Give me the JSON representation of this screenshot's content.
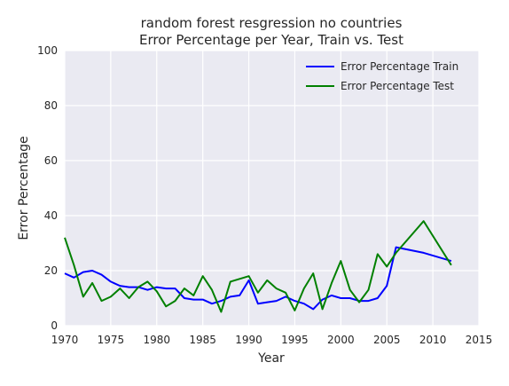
{
  "chart_data": {
    "type": "line",
    "title_lines": [
      "random forest resgression no countries",
      "Error Percentage per Year, Train vs. Test"
    ],
    "xlabel": "Year",
    "ylabel": "Error Percentage",
    "xlim": [
      1970,
      2015
    ],
    "ylim": [
      0,
      100
    ],
    "xticks": [
      1970,
      1975,
      1980,
      1985,
      1990,
      1995,
      2000,
      2005,
      2010,
      2015
    ],
    "yticks": [
      0,
      20,
      40,
      60,
      80,
      100
    ],
    "grid": true,
    "legend_position": "top-right",
    "x": [
      1970,
      1971,
      1972,
      1973,
      1974,
      1975,
      1976,
      1977,
      1978,
      1979,
      1980,
      1981,
      1982,
      1983,
      1984,
      1985,
      1986,
      1987,
      1988,
      1989,
      1990,
      1991,
      1992,
      1993,
      1994,
      1995,
      1996,
      1997,
      1998,
      1999,
      2000,
      2001,
      2002,
      2003,
      2004,
      2005,
      2006,
      2009,
      2012
    ],
    "series": [
      {
        "name": "Error Percentage Train",
        "color": "#0000ff",
        "values": [
          19,
          17.5,
          19.5,
          20,
          18.5,
          16,
          14.5,
          14,
          14,
          13,
          14,
          13.5,
          13.5,
          10,
          9.5,
          9.5,
          8,
          9,
          10.5,
          11,
          16.5,
          8,
          8.5,
          9,
          10.5,
          9,
          8,
          6,
          9.5,
          11,
          10,
          10,
          9,
          9,
          10,
          14.5,
          28.5,
          26.5,
          23.5
        ]
      },
      {
        "name": "Error Percentage Test",
        "color": "#008000",
        "values": [
          32,
          22,
          10.5,
          15.5,
          9,
          10.5,
          13.5,
          10,
          14,
          16,
          12.5,
          7,
          9,
          13.5,
          11,
          18,
          13,
          5,
          16,
          17,
          18,
          12,
          16.5,
          13.5,
          12,
          5.5,
          13.5,
          19,
          6,
          15.5,
          23.5,
          13,
          8.5,
          13,
          26,
          21.5,
          26.5,
          38,
          22
        ]
      }
    ]
  }
}
